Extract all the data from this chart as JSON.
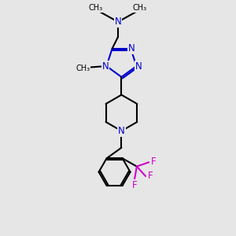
{
  "background_color": "#e6e6e6",
  "bond_color": "#000000",
  "nitrogen_color": "#0000cc",
  "fluorine_color": "#cc00cc",
  "line_width": 1.5,
  "figsize": [
    3.0,
    3.0
  ],
  "dpi": 100,
  "xlim": [
    0,
    10
  ],
  "ylim": [
    0,
    10
  ]
}
